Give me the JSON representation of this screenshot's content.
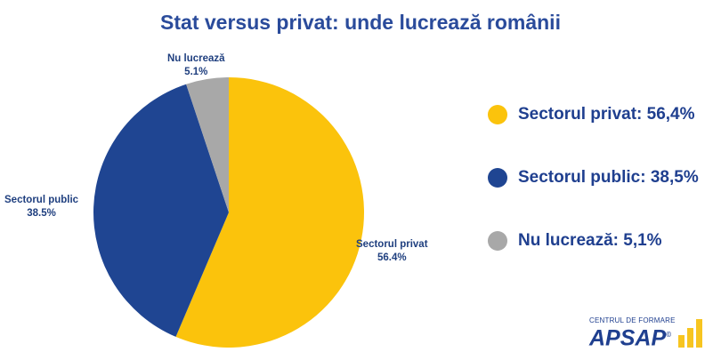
{
  "title": "Stat versus privat: unde lucrează românii",
  "chart_data": {
    "type": "pie",
    "title": "Stat versus privat: unde lucrează românii",
    "slices": [
      {
        "label": "Sectorul privat",
        "value": 56.4,
        "label_value": "56.4%",
        "legend": "Sectorul privat: 56,4%",
        "color": "#fbc30c"
      },
      {
        "label": "Sectorul public",
        "value": 38.5,
        "label_value": "38.5%",
        "legend": "Sectorul public: 38,5%",
        "color": "#1f4592"
      },
      {
        "label": "Nu lucrează",
        "value": 5.1,
        "label_value": "5.1%",
        "legend": "Nu lucrează: 5,1%",
        "color": "#a8a8a8"
      }
    ],
    "legend_position": "right"
  },
  "logo": {
    "top": "CENTRUL DE FORMARE",
    "name": "APSAP",
    "mark": "©"
  }
}
